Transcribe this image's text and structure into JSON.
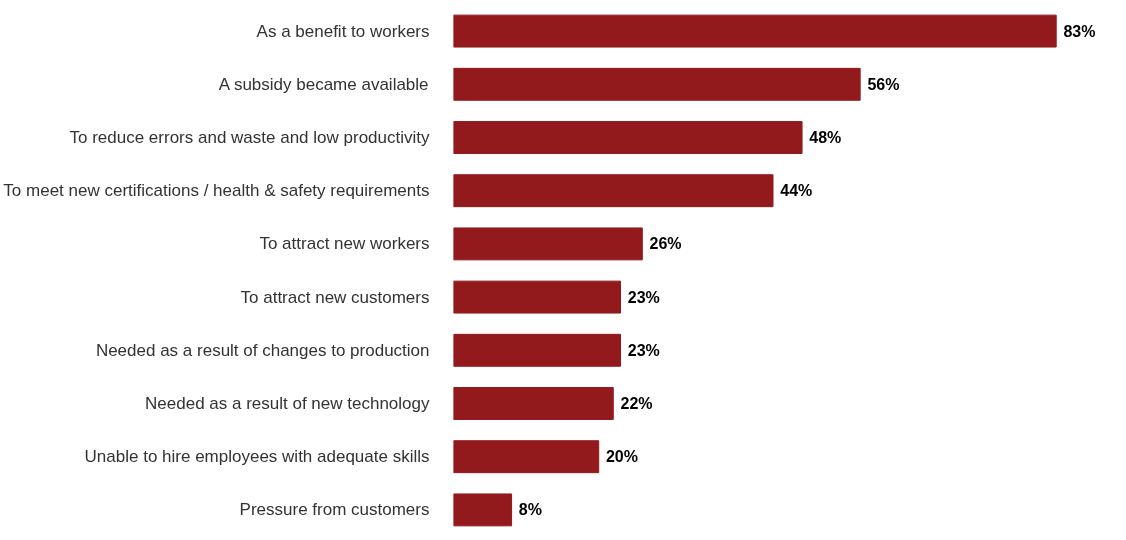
{
  "chart_data": {
    "type": "bar",
    "orientation": "horizontal",
    "categories": [
      "As a benefit to workers",
      "A subsidy became available",
      "To reduce errors and waste and low productivity",
      "To meet new certifications / health & safety requirements",
      "To attract new workers",
      "To attract new customers",
      "Needed as a result of changes to production",
      "Needed as a result of new technology",
      "Unable to hire employees with adequate skills",
      "Pressure from customers"
    ],
    "values": [
      83,
      56,
      48,
      44,
      26,
      23,
      23,
      22,
      20,
      8
    ],
    "value_labels": [
      "83%",
      "56%",
      "48%",
      "44%",
      "26%",
      "23%",
      "23%",
      "22%",
      "20%",
      "8%"
    ],
    "color": "#921a1d"
  }
}
